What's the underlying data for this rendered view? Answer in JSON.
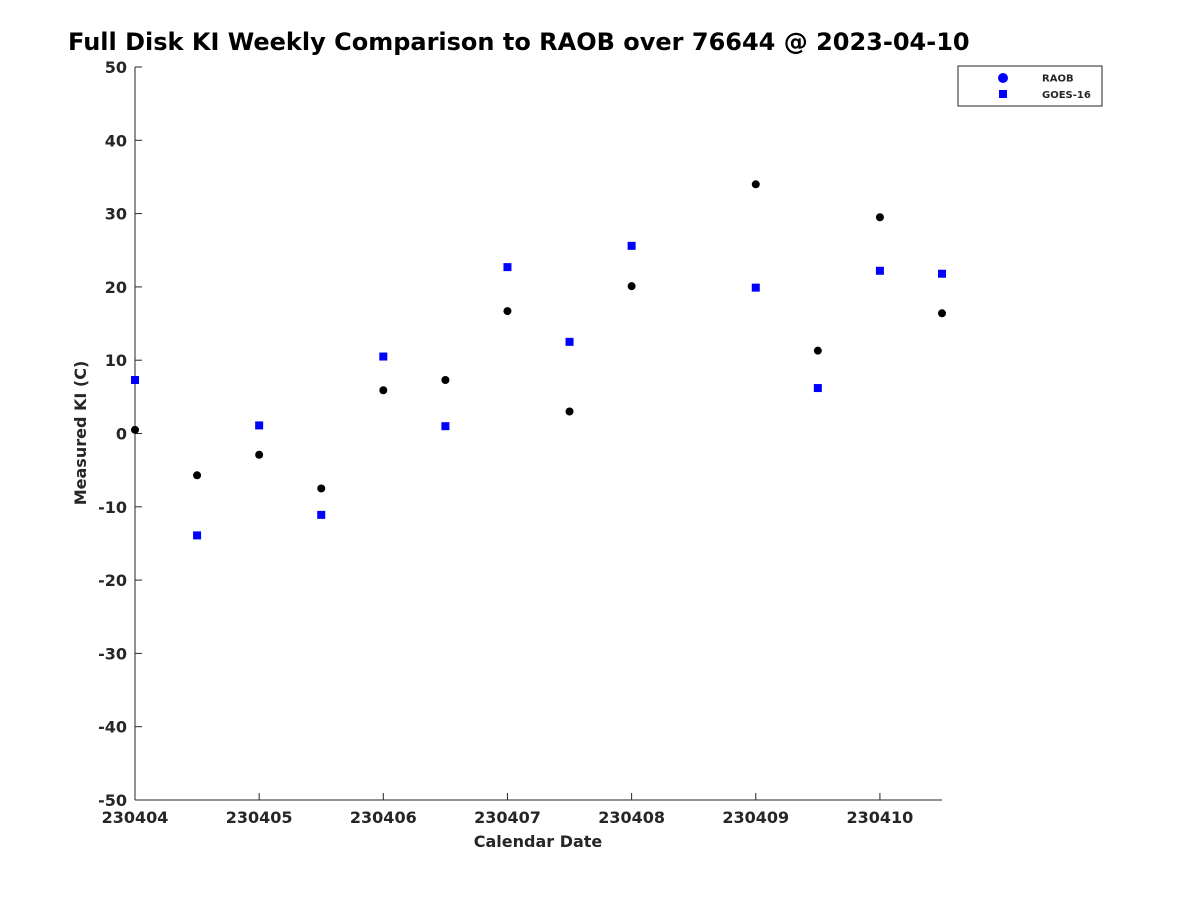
{
  "chart_data": {
    "type": "scatter",
    "title": "Full Disk KI Weekly Comparison to RAOB over 76644 @ 2023-04-10",
    "xlabel": "Calendar Date",
    "ylabel": "Measured KI (C)",
    "xlim": [
      "2023-04-04",
      "2023-04-10 12:00"
    ],
    "ylim": [
      -50,
      50
    ],
    "x_ticks": [
      "230404",
      "230405",
      "230406",
      "230407",
      "230408",
      "230409",
      "230410"
    ],
    "y_ticks": [
      "50",
      "40",
      "30",
      "20",
      "10",
      "0",
      "-10",
      "-20",
      "-30",
      "-40",
      "-50"
    ],
    "grid": false,
    "legend_position": "top-right",
    "series": [
      {
        "name": "RAOB",
        "marker": "circle",
        "color": "#000000",
        "legend_color": "#0000ff",
        "points": [
          {
            "x": "2023-04-04 00:00",
            "y": 0.5
          },
          {
            "x": "2023-04-04 12:00",
            "y": -5.7
          },
          {
            "x": "2023-04-05 00:00",
            "y": -2.9
          },
          {
            "x": "2023-04-05 12:00",
            "y": -7.5
          },
          {
            "x": "2023-04-06 00:00",
            "y": 5.9
          },
          {
            "x": "2023-04-06 12:00",
            "y": 7.3
          },
          {
            "x": "2023-04-07 00:00",
            "y": 16.7
          },
          {
            "x": "2023-04-07 12:00",
            "y": 3.0
          },
          {
            "x": "2023-04-08 00:00",
            "y": 20.1
          },
          {
            "x": "2023-04-09 00:00",
            "y": 34.0
          },
          {
            "x": "2023-04-09 12:00",
            "y": 11.3
          },
          {
            "x": "2023-04-10 00:00",
            "y": 29.5
          },
          {
            "x": "2023-04-10 12:00",
            "y": 16.4
          }
        ]
      },
      {
        "name": "GOES-16",
        "marker": "square",
        "color": "#0000ff",
        "legend_color": "#0000ff",
        "points": [
          {
            "x": "2023-04-04 00:00",
            "y": 7.3
          },
          {
            "x": "2023-04-04 12:00",
            "y": -13.9
          },
          {
            "x": "2023-04-05 00:00",
            "y": 1.1
          },
          {
            "x": "2023-04-05 12:00",
            "y": -11.1
          },
          {
            "x": "2023-04-06 00:00",
            "y": 10.5
          },
          {
            "x": "2023-04-06 12:00",
            "y": 1.0
          },
          {
            "x": "2023-04-07 00:00",
            "y": 22.7
          },
          {
            "x": "2023-04-07 12:00",
            "y": 12.5
          },
          {
            "x": "2023-04-08 00:00",
            "y": 25.6
          },
          {
            "x": "2023-04-09 00:00",
            "y": 19.9
          },
          {
            "x": "2023-04-09 12:00",
            "y": 6.2
          },
          {
            "x": "2023-04-10 00:00",
            "y": 22.2
          },
          {
            "x": "2023-04-10 12:00",
            "y": 21.8
          }
        ]
      }
    ]
  }
}
